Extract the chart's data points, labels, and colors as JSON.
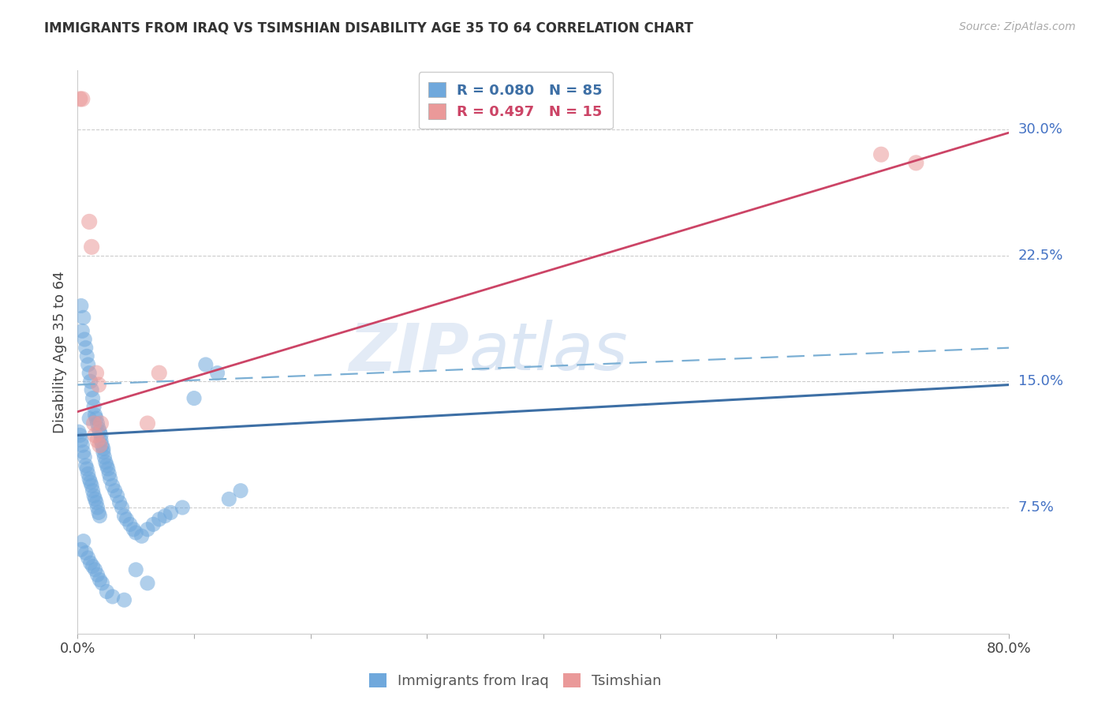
{
  "title": "IMMIGRANTS FROM IRAQ VS TSIMSHIAN DISABILITY AGE 35 TO 64 CORRELATION CHART",
  "source": "Source: ZipAtlas.com",
  "ylabel": "Disability Age 35 to 64",
  "x_min": 0.0,
  "x_max": 0.8,
  "y_min": 0.0,
  "y_max": 0.335,
  "ytick_vals": [
    0.075,
    0.15,
    0.225,
    0.3
  ],
  "ytick_labels": [
    "7.5%",
    "15.0%",
    "22.5%",
    "30.0%"
  ],
  "iraq_color": "#6fa8dc",
  "tsimshian_color": "#ea9999",
  "iraq_line_color": "#3d6fa5",
  "tsimshian_line_color": "#cc4466",
  "dashed_line_color": "#7bafd4",
  "iraq_trend_y0": 0.118,
  "iraq_trend_y1": 0.148,
  "tsimshian_trend_y0": 0.132,
  "tsimshian_trend_y1": 0.298,
  "dashed_trend_y0": 0.148,
  "dashed_trend_y1": 0.17,
  "legend_r_iraq": "R = 0.080",
  "legend_n_iraq": "N = 85",
  "legend_r_tsim": "R = 0.497",
  "legend_n_tsim": "N = 15",
  "bottom_label_iraq": "Immigrants from Iraq",
  "bottom_label_tsim": "Tsimshian",
  "watermark_zip": "ZIP",
  "watermark_atlas": "atlas",
  "iraq_x": [
    0.001,
    0.002,
    0.003,
    0.003,
    0.004,
    0.004,
    0.005,
    0.005,
    0.006,
    0.006,
    0.007,
    0.007,
    0.008,
    0.008,
    0.009,
    0.009,
    0.01,
    0.01,
    0.01,
    0.011,
    0.011,
    0.012,
    0.012,
    0.013,
    0.013,
    0.014,
    0.014,
    0.015,
    0.015,
    0.016,
    0.016,
    0.017,
    0.017,
    0.018,
    0.018,
    0.019,
    0.019,
    0.02,
    0.02,
    0.021,
    0.022,
    0.022,
    0.023,
    0.024,
    0.025,
    0.026,
    0.027,
    0.028,
    0.03,
    0.032,
    0.034,
    0.036,
    0.038,
    0.04,
    0.042,
    0.045,
    0.048,
    0.05,
    0.055,
    0.06,
    0.065,
    0.07,
    0.075,
    0.08,
    0.09,
    0.1,
    0.11,
    0.12,
    0.13,
    0.14,
    0.003,
    0.005,
    0.007,
    0.009,
    0.011,
    0.013,
    0.015,
    0.017,
    0.019,
    0.021,
    0.025,
    0.03,
    0.04,
    0.05,
    0.06
  ],
  "iraq_y": [
    0.12,
    0.118,
    0.195,
    0.115,
    0.18,
    0.112,
    0.188,
    0.108,
    0.175,
    0.105,
    0.17,
    0.1,
    0.165,
    0.098,
    0.16,
    0.095,
    0.155,
    0.128,
    0.092,
    0.15,
    0.09,
    0.145,
    0.088,
    0.14,
    0.085,
    0.135,
    0.082,
    0.13,
    0.08,
    0.128,
    0.078,
    0.125,
    0.075,
    0.122,
    0.072,
    0.12,
    0.07,
    0.118,
    0.115,
    0.112,
    0.11,
    0.108,
    0.105,
    0.102,
    0.1,
    0.098,
    0.095,
    0.092,
    0.088,
    0.085,
    0.082,
    0.078,
    0.075,
    0.07,
    0.068,
    0.065,
    0.062,
    0.06,
    0.058,
    0.062,
    0.065,
    0.068,
    0.07,
    0.072,
    0.075,
    0.14,
    0.16,
    0.155,
    0.08,
    0.085,
    0.05,
    0.055,
    0.048,
    0.045,
    0.042,
    0.04,
    0.038,
    0.035,
    0.032,
    0.03,
    0.025,
    0.022,
    0.02,
    0.038,
    0.03
  ],
  "tsim_x": [
    0.002,
    0.004,
    0.01,
    0.012,
    0.016,
    0.018,
    0.02,
    0.015,
    0.017,
    0.019,
    0.06,
    0.07,
    0.014,
    0.69,
    0.72
  ],
  "tsim_y": [
    0.318,
    0.318,
    0.245,
    0.23,
    0.155,
    0.148,
    0.125,
    0.118,
    0.115,
    0.112,
    0.125,
    0.155,
    0.125,
    0.285,
    0.28
  ]
}
